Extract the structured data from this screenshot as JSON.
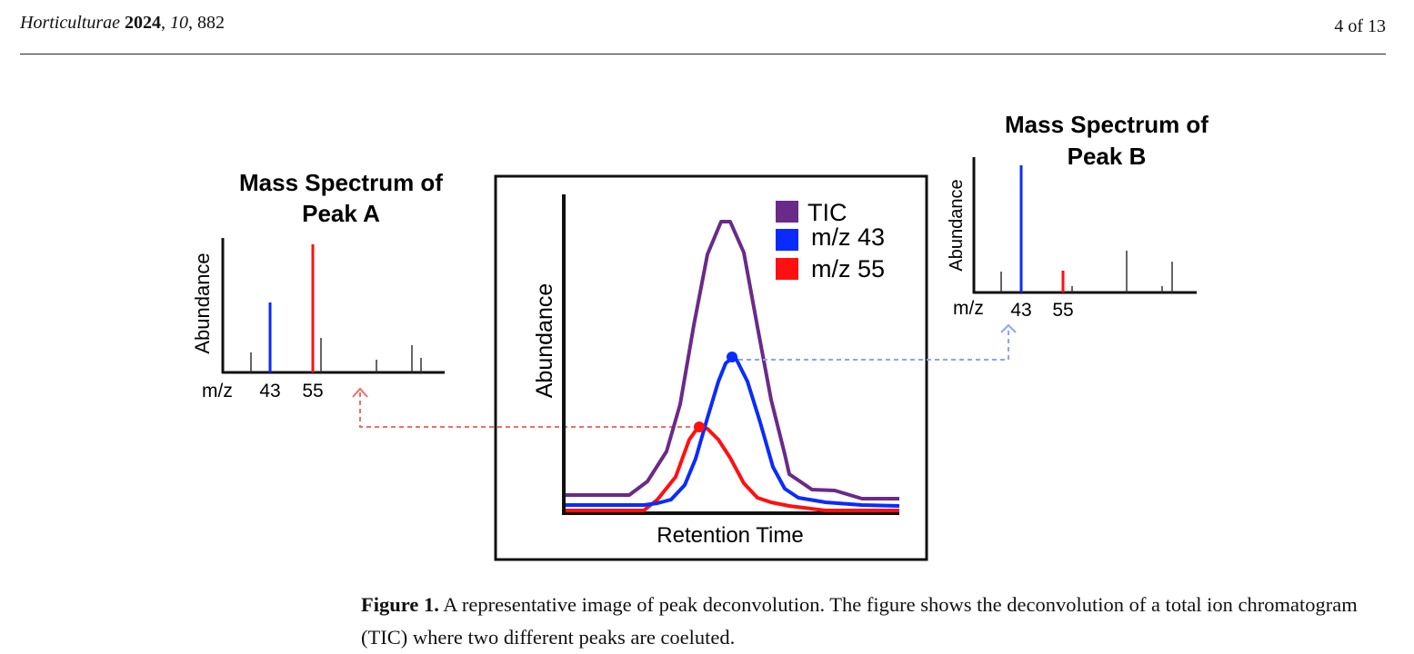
{
  "header": {
    "journal_name": "Horticulturae",
    "year": "2024",
    "volume": "10",
    "article": "882",
    "page": "4 of 13"
  },
  "figure": {
    "left_spectrum": {
      "title_line1": "Mass Spectrum of",
      "title_line2": "Peak A",
      "ylabel": "Abundance",
      "xlabel": "m/z",
      "tick_43": "43",
      "tick_55": "55"
    },
    "right_spectrum": {
      "title_line1": "Mass Spectrum of",
      "title_line2": "Peak B",
      "ylabel": "Abundance",
      "xlabel": "m/z",
      "tick_43": "43",
      "tick_55": "55"
    },
    "chromatogram": {
      "ylabel": "Abundance",
      "xlabel": "Retention Time",
      "legend": [
        {
          "label": "TIC",
          "color": "#6a2a8a"
        },
        {
          "label": "m/z 43",
          "color": "#0a2bff"
        },
        {
          "label": "m/z 55",
          "color": "#ff1010"
        }
      ]
    },
    "colors": {
      "tic": "#6a2a8a",
      "mz43": "#0a2bff",
      "mz55": "#ff1010",
      "link_a": "#f26b6b",
      "link_b": "#8fa0ff"
    }
  },
  "caption": {
    "label": "Figure 1.",
    "text": " A representative image of peak deconvolution. The figure shows the deconvolution of a total ion chromatogram (TIC) where two different peaks are coeluted."
  }
}
